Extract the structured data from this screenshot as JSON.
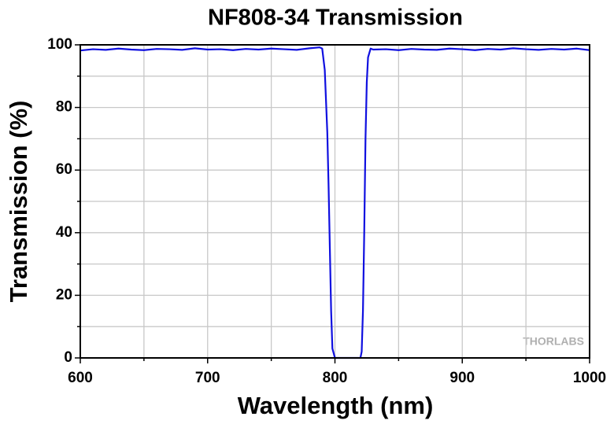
{
  "chart_data": {
    "type": "line",
    "title": "NF808-34 Transmission",
    "xlabel": "Wavelength (nm)",
    "ylabel": "Transmission (%)",
    "annotation": "THORLABS",
    "x": [
      600,
      610,
      620,
      630,
      640,
      650,
      660,
      670,
      680,
      690,
      700,
      710,
      720,
      730,
      740,
      750,
      760,
      770,
      780,
      788,
      790,
      792,
      794,
      795,
      796,
      797,
      798,
      800,
      810,
      820,
      821,
      822,
      823,
      824,
      825,
      826,
      828,
      830,
      840,
      850,
      860,
      870,
      880,
      890,
      900,
      910,
      920,
      930,
      940,
      950,
      960,
      970,
      980,
      990,
      1000
    ],
    "series": [
      {
        "name": "Transmission",
        "color": "#1010e0",
        "values": [
          98.2,
          98.6,
          98.4,
          98.8,
          98.5,
          98.3,
          98.7,
          98.6,
          98.4,
          98.9,
          98.5,
          98.6,
          98.3,
          98.7,
          98.5,
          98.8,
          98.6,
          98.4,
          98.9,
          99.2,
          98.8,
          92,
          72,
          55,
          35,
          15,
          3,
          0,
          0,
          0,
          2,
          15,
          40,
          70,
          88,
          96,
          98.8,
          98.5,
          98.6,
          98.3,
          98.7,
          98.5,
          98.4,
          98.8,
          98.6,
          98.3,
          98.7,
          98.5,
          98.9,
          98.6,
          98.4,
          98.7,
          98.5,
          98.8,
          98.3
        ]
      }
    ],
    "xlim": [
      600,
      1000
    ],
    "xticks": [
      600,
      700,
      800,
      900,
      1000
    ],
    "xminor": [
      650,
      750,
      850,
      950
    ],
    "ylim": [
      0,
      100
    ],
    "yticks": [
      0,
      20,
      40,
      60,
      80,
      100
    ],
    "yminor": [
      10,
      30,
      50,
      70,
      90
    ],
    "grid": true
  }
}
